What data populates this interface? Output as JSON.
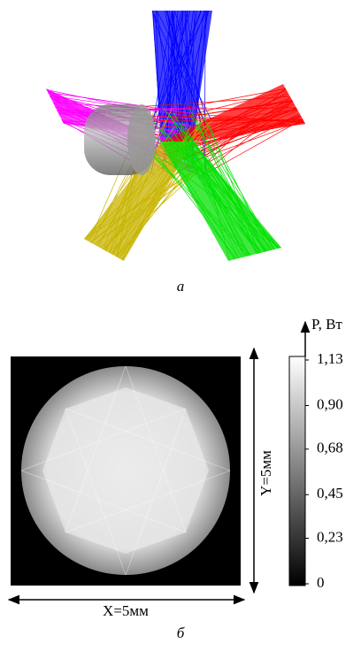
{
  "figure_a": {
    "label": "а"
  },
  "figure_b": {
    "label": "б",
    "x_dimension": "X=5мм",
    "y_dimension": "Y=5мм",
    "colorbar": {
      "title": "P, Вт",
      "lim": [
        0,
        1.13
      ],
      "ticks": [
        0,
        {
          "value": 0.23,
          "label": "0,23"
        },
        {
          "value": 0.45,
          "label": "0,45"
        },
        {
          "value": 0.68,
          "label": "0,68"
        },
        {
          "value": 0.9,
          "label": "0,90"
        },
        {
          "value": 1.13,
          "label": "1,13"
        }
      ]
    }
  }
}
